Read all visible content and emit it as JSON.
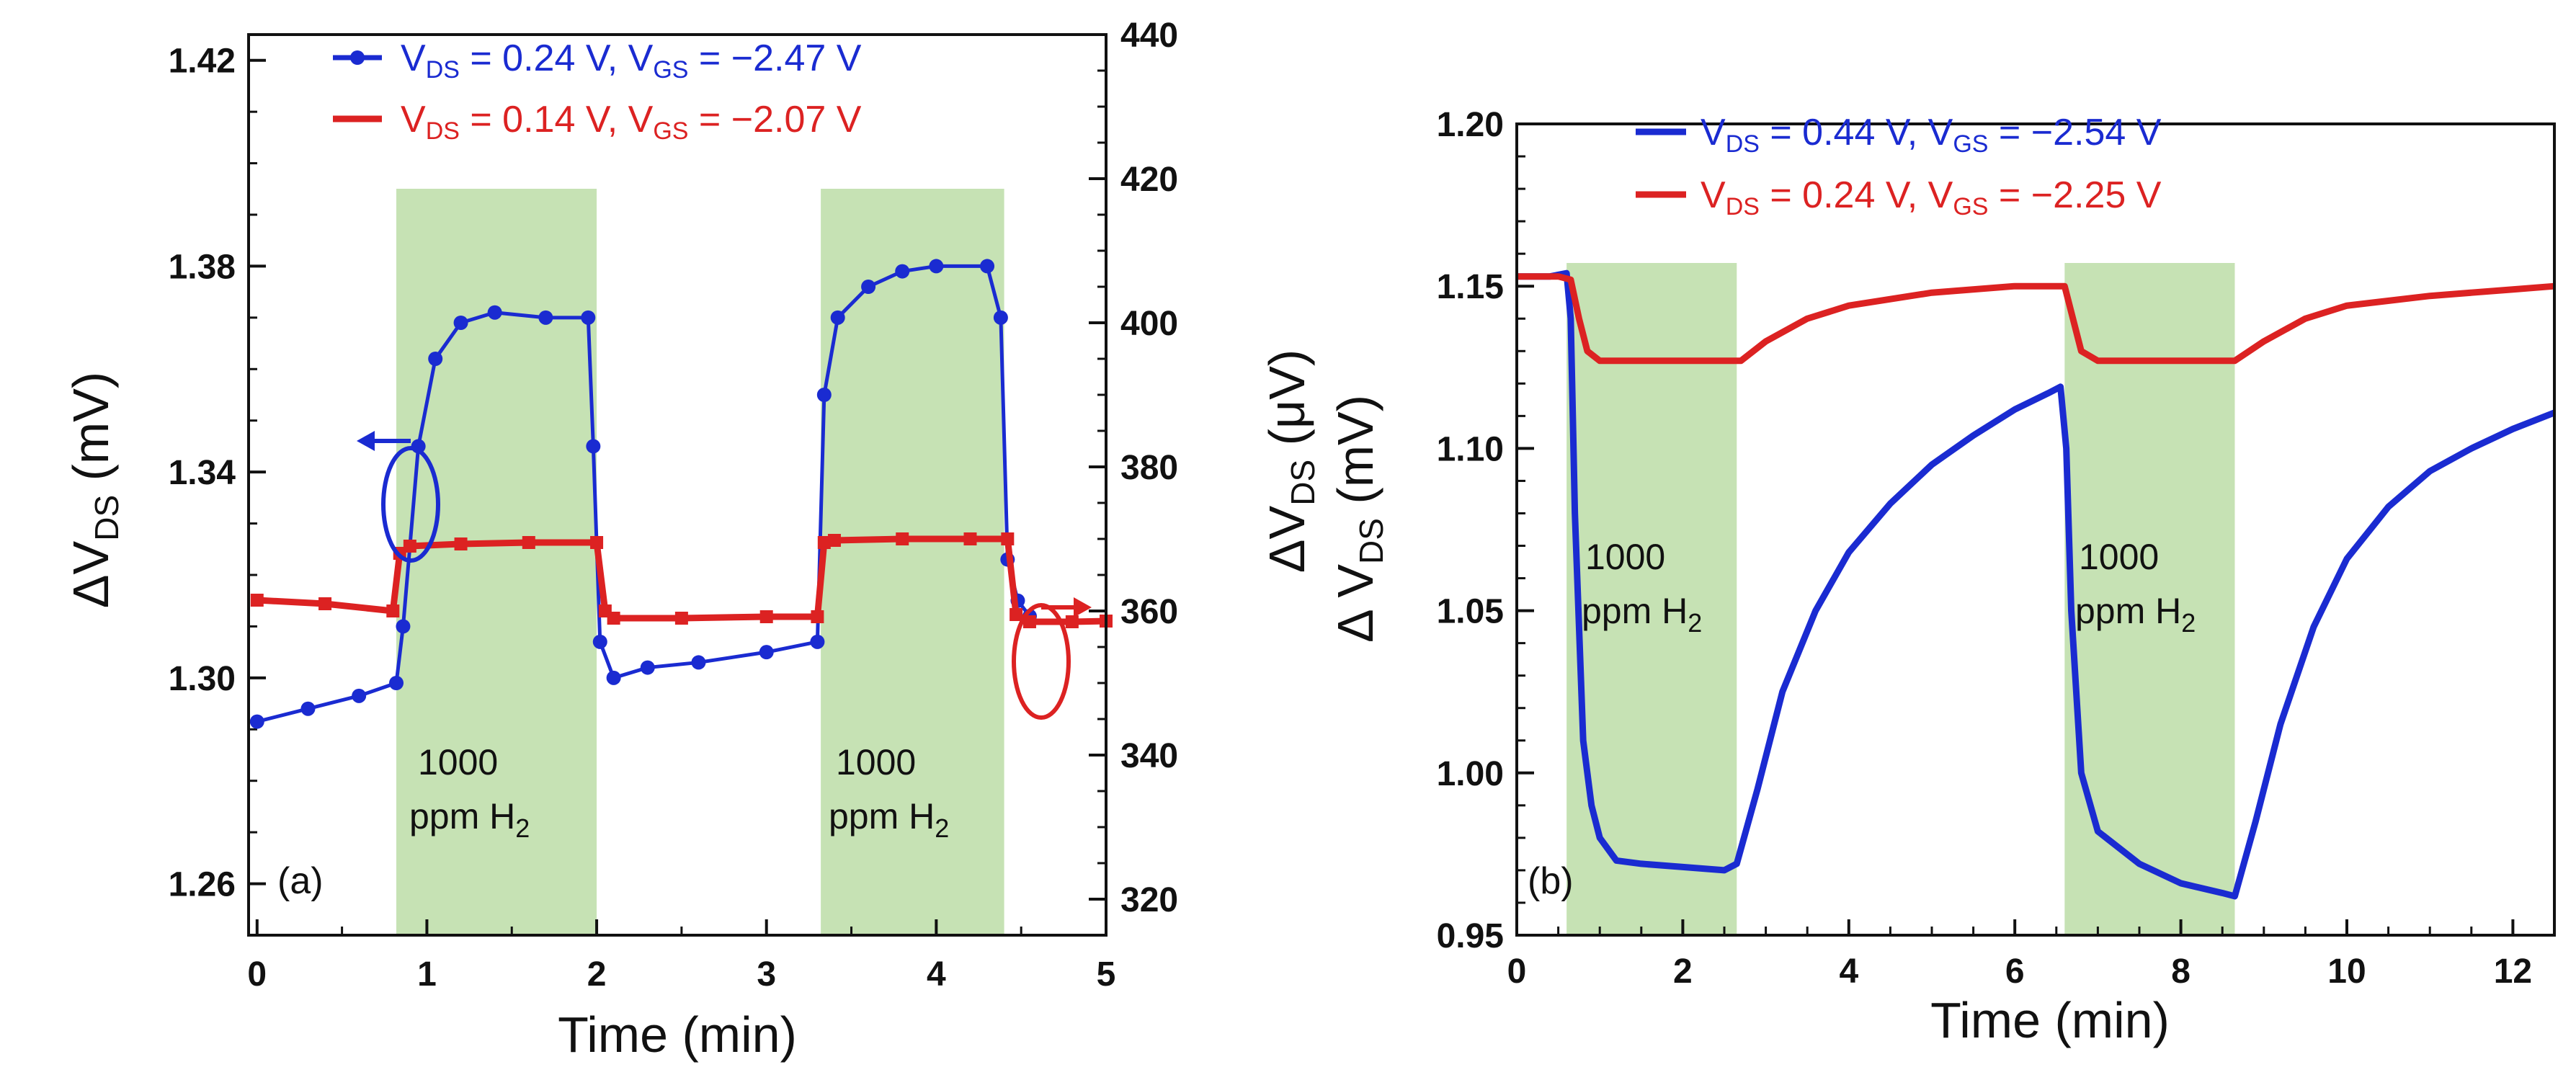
{
  "chart_data": [
    {
      "type": "line",
      "panel_label": "(a)",
      "xlabel": "Time (min)",
      "ylabel_left": "ΔV_DS (mV)",
      "ylabel_right": "ΔV_DS (μV)",
      "xlim": [
        -0.05,
        5.0
      ],
      "ylim_left": [
        1.25,
        1.425
      ],
      "ylim_right": [
        315,
        440
      ],
      "xticks": [
        0,
        1,
        2,
        3,
        4,
        5
      ],
      "yticks_left": [
        1.26,
        1.3,
        1.34,
        1.38,
        1.42
      ],
      "yticks_right": [
        320,
        340,
        360,
        380,
        400,
        420,
        440
      ],
      "shaded_regions": [
        [
          0.82,
          2.0
        ],
        [
          3.32,
          4.4
        ]
      ],
      "annotations": [
        "1000 ppm H2",
        "1000 ppm H2"
      ],
      "series": [
        {
          "name": "V_DS = 0.24 V, V_GS = −2.47 V",
          "legend": {
            "main": "V",
            "sub1": "DS",
            "mid": " = 0.24 V, V",
            "sub2": "GS",
            "end": " = −2.47 V"
          },
          "color": "#1a2bd1",
          "axis": "left",
          "marker": "circle",
          "x": [
            0.0,
            0.3,
            0.6,
            0.82,
            0.86,
            0.95,
            1.05,
            1.2,
            1.4,
            1.7,
            1.95,
            1.98,
            2.02,
            2.1,
            2.3,
            2.6,
            3.0,
            3.3,
            3.34,
            3.42,
            3.6,
            3.8,
            4.0,
            4.3,
            4.38,
            4.42,
            4.48,
            4.55
          ],
          "values": [
            1.2915,
            1.294,
            1.2965,
            1.299,
            1.31,
            1.345,
            1.362,
            1.369,
            1.371,
            1.37,
            1.37,
            1.345,
            1.307,
            1.3,
            1.302,
            1.303,
            1.305,
            1.307,
            1.355,
            1.37,
            1.376,
            1.379,
            1.38,
            1.38,
            1.37,
            1.323,
            1.315,
            1.312
          ]
        },
        {
          "name": "V_DS = 0.14 V, V_GS = −2.07 V",
          "legend": {
            "main": "V",
            "sub1": "DS",
            "mid": " = 0.14 V, V",
            "sub2": "GS",
            "end": " = −2.07 V"
          },
          "color": "#dc2222",
          "axis": "right",
          "marker": "square",
          "x": [
            0.0,
            0.4,
            0.8,
            0.84,
            0.9,
            1.2,
            1.6,
            2.0,
            2.05,
            2.1,
            2.5,
            3.0,
            3.3,
            3.34,
            3.4,
            3.8,
            4.2,
            4.42,
            4.47,
            4.55,
            4.8,
            5.0
          ],
          "values": [
            361.5,
            361.0,
            360.0,
            368.0,
            369.0,
            369.3,
            369.5,
            369.5,
            360.0,
            359.0,
            359.0,
            359.2,
            359.2,
            369.5,
            369.8,
            370.0,
            370.0,
            370.0,
            359.5,
            358.5,
            358.5,
            358.6
          ]
        }
      ]
    },
    {
      "type": "line",
      "panel_label": "(b)",
      "xlabel": "Time (min)",
      "ylabel": "Δ V_DS (mV)",
      "xlim": [
        0,
        12.5
      ],
      "ylim": [
        0.95,
        1.2
      ],
      "xticks": [
        0,
        2,
        4,
        6,
        8,
        10,
        12
      ],
      "yticks": [
        0.95,
        1.0,
        1.05,
        1.1,
        1.15,
        1.2
      ],
      "shaded_regions": [
        [
          0.6,
          2.65
        ],
        [
          6.6,
          8.65
        ]
      ],
      "annotations": [
        "1000 ppm H2",
        "1000 ppm H2"
      ],
      "series": [
        {
          "name": "V_DS = 0.44 V, V_GS = −2.54 V",
          "legend": {
            "main": "V",
            "sub1": "DS",
            "mid": " = 0.44 V, V",
            "sub2": "GS",
            "end": " = −2.54 V"
          },
          "color": "#1a2bd1",
          "axis": "left",
          "x": [
            0.0,
            0.4,
            0.6,
            0.65,
            0.7,
            0.8,
            0.9,
            1.0,
            1.2,
            1.5,
            2.0,
            2.5,
            2.65,
            2.9,
            3.2,
            3.6,
            4.0,
            4.5,
            5.0,
            5.5,
            6.0,
            6.4,
            6.55,
            6.62,
            6.68,
            6.8,
            7.0,
            7.5,
            8.0,
            8.5,
            8.65,
            8.9,
            9.2,
            9.6,
            10.0,
            10.5,
            11.0,
            11.5,
            12.0,
            12.5
          ],
          "values": [
            1.153,
            1.153,
            1.154,
            1.14,
            1.08,
            1.01,
            0.99,
            0.98,
            0.973,
            0.972,
            0.971,
            0.97,
            0.972,
            0.995,
            1.025,
            1.05,
            1.068,
            1.083,
            1.095,
            1.104,
            1.112,
            1.117,
            1.119,
            1.1,
            1.05,
            1.0,
            0.982,
            0.972,
            0.966,
            0.963,
            0.962,
            0.985,
            1.015,
            1.045,
            1.066,
            1.082,
            1.093,
            1.1,
            1.106,
            1.111
          ]
        },
        {
          "name": "V_DS = 0.24 V, V_GS = −2.25 V",
          "legend": {
            "main": "V",
            "sub1": "DS",
            "mid": " = 0.24 V, V",
            "sub2": "GS",
            "end": " = −2.25 V"
          },
          "color": "#dc2222",
          "axis": "left",
          "x": [
            0.0,
            0.5,
            0.65,
            0.75,
            0.85,
            1.0,
            1.5,
            2.0,
            2.7,
            3.0,
            3.5,
            4.0,
            5.0,
            6.0,
            6.6,
            6.7,
            6.8,
            7.0,
            7.5,
            8.0,
            8.65,
            9.0,
            9.5,
            10.0,
            11.0,
            12.0,
            12.5
          ],
          "values": [
            1.153,
            1.153,
            1.152,
            1.14,
            1.13,
            1.127,
            1.127,
            1.127,
            1.127,
            1.133,
            1.14,
            1.144,
            1.148,
            1.15,
            1.15,
            1.14,
            1.13,
            1.127,
            1.127,
            1.127,
            1.127,
            1.133,
            1.14,
            1.144,
            1.147,
            1.149,
            1.15
          ]
        }
      ]
    }
  ]
}
